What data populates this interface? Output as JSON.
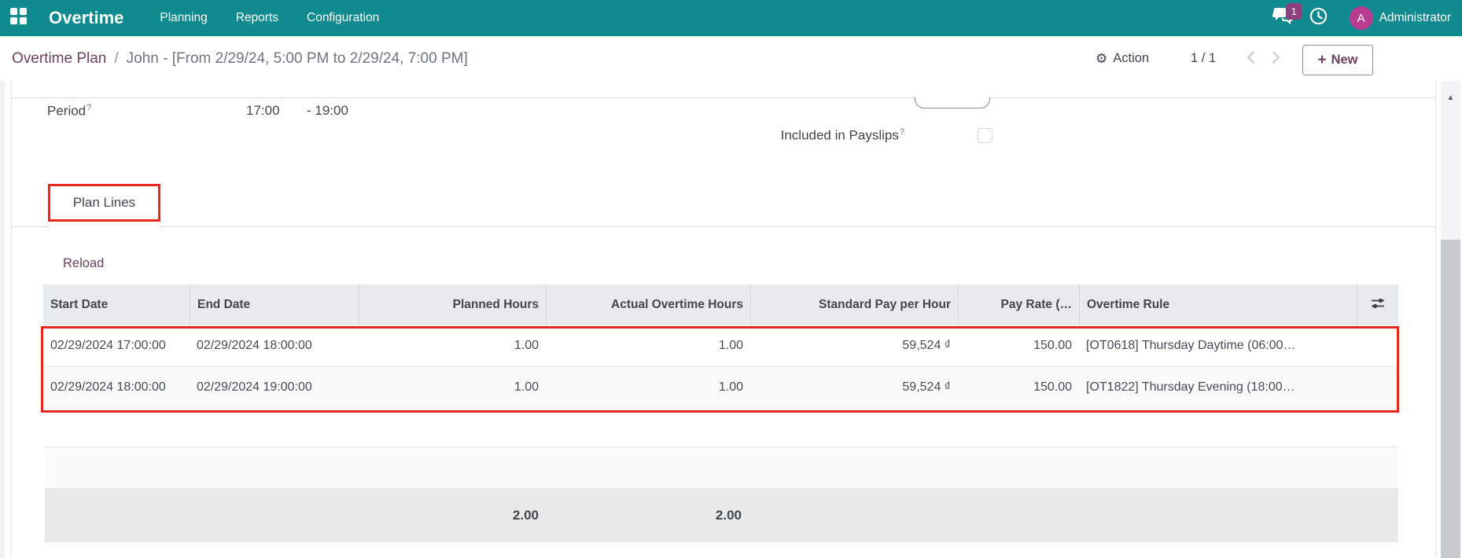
{
  "colors": {
    "navbar_teal": "#0f8a8f",
    "brand_purple": "#6d4161",
    "badge_purple": "#8f3f7e",
    "avatar_pink": "#b83c90",
    "annotation_red": "#e5271e",
    "header_gray": "#e8ebee"
  },
  "navbar": {
    "brand": "Overtime",
    "menus": [
      "Planning",
      "Reports",
      "Configuration"
    ],
    "badge_count": "1",
    "icons": [
      "apps-grid-icon",
      "chat-bubbles-icon",
      "clock-activity-icon"
    ],
    "user": {
      "initial": "A",
      "name": "Administrator"
    }
  },
  "control_panel": {
    "breadcrumb_root": "Overtime Plan",
    "breadcrumb_separator": "/",
    "breadcrumb_current": "John - [From 2/29/24, 5:00 PM to 2/29/24, 7:00 PM]",
    "action_label": "Action",
    "pager": "1 / 1",
    "new_plus": "+",
    "new_label": "New"
  },
  "form": {
    "period": {
      "label": "Period",
      "help_marker": "?",
      "value_from": "17:00",
      "value_to": "- 19:00"
    },
    "included_in_payslips": {
      "label": "Included in Payslips",
      "help_marker": "?",
      "checked": false
    },
    "tab_label": "Plan Lines",
    "reload_label": "Reload"
  },
  "table": {
    "columns": [
      "Start Date",
      "End Date",
      "Planned Hours",
      "Actual Overtime Hours",
      "Standard Pay per Hour",
      "Pay Rate (…",
      "Overtime Rule",
      ""
    ],
    "rows": [
      [
        "02/29/2024 17:00:00",
        "02/29/2024 18:00:00",
        "1.00",
        "1.00",
        "59,524 ₫",
        "150.00",
        "[OT0618] Thursday Daytime (06:00…",
        ""
      ],
      [
        "02/29/2024 18:00:00",
        "02/29/2024 19:00:00",
        "1.00",
        "1.00",
        "59,524 ₫",
        "150.00",
        "[OT1822] Thursday Evening (18:00…",
        ""
      ]
    ],
    "sum_planned": "2.00",
    "sum_actual": "2.00"
  }
}
